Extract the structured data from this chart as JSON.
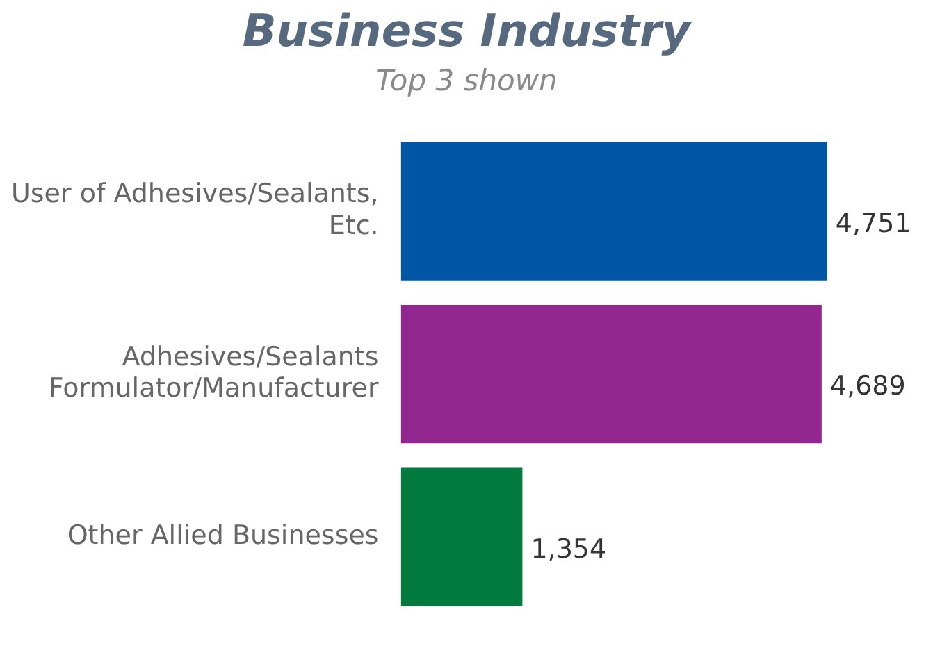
{
  "chart_data": {
    "type": "bar",
    "title": "Business Industry",
    "subtitle": "Top 3 shown",
    "orientation": "horizontal",
    "categories": [
      "User of Adhesives/Sealants, Etc.",
      "Adhesives/Sealants Formulator/Manufacturer",
      "Other Allied Businesses"
    ],
    "values": [
      4751,
      4689,
      1354
    ],
    "colors": [
      "#0055a5",
      "#92278f",
      "#007a3d"
    ],
    "value_labels": [
      "4,751",
      "4,689",
      "1,354"
    ],
    "grid": false,
    "legend": false
  }
}
